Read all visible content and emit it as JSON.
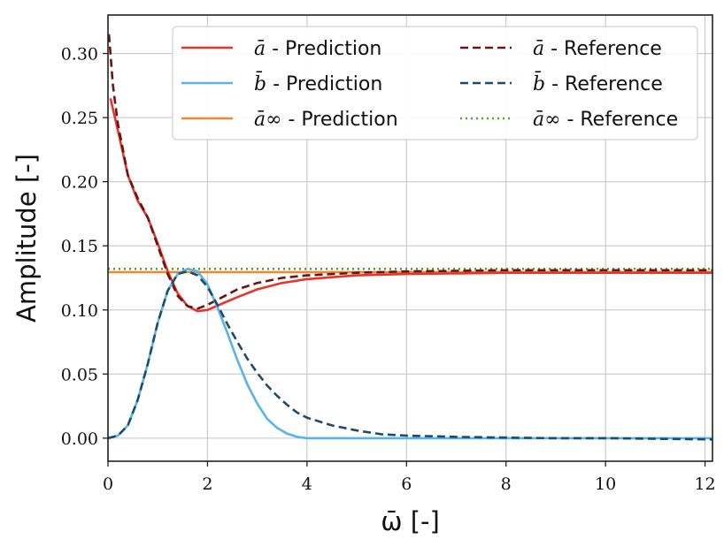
{
  "chart_data": {
    "type": "line",
    "title": "",
    "xlabel": "ω̄ [-]",
    "ylabel": "Amplitude [-]",
    "xlim": [
      0,
      12.15
    ],
    "ylim": [
      -0.018,
      0.33
    ],
    "xticks": [
      0,
      2,
      4,
      6,
      8,
      10,
      12
    ],
    "xtick_labels": [
      "0",
      "2",
      "4",
      "6",
      "8",
      "10",
      "12"
    ],
    "yticks": [
      0.0,
      0.05,
      0.1,
      0.15,
      0.2,
      0.25,
      0.3
    ],
    "ytick_labels": [
      "0.00",
      "0.05",
      "0.10",
      "0.15",
      "0.20",
      "0.25",
      "0.30"
    ],
    "grid": true,
    "legend_position": "top-right",
    "series": [
      {
        "name": "ā - Prediction",
        "symbol": "ā",
        "suffix": " - Prediction",
        "color": "#e8352b",
        "style": "solid",
        "x": [
          0.05,
          0.2,
          0.4,
          0.6,
          0.8,
          1.0,
          1.2,
          1.4,
          1.6,
          1.8,
          2.0,
          2.3,
          2.6,
          3.0,
          3.5,
          4.0,
          5.0,
          6.0,
          7.0,
          8.0,
          10.0,
          12.15
        ],
        "y": [
          0.265,
          0.24,
          0.205,
          0.185,
          0.172,
          0.152,
          0.13,
          0.113,
          0.103,
          0.099,
          0.1,
          0.105,
          0.11,
          0.116,
          0.121,
          0.124,
          0.127,
          0.128,
          0.1285,
          0.129,
          0.129,
          0.129
        ]
      },
      {
        "name": "b̄ - Prediction",
        "symbol": "b̄",
        "suffix": " - Prediction",
        "color": "#56b4ea",
        "style": "solid",
        "x": [
          0.0,
          0.2,
          0.4,
          0.6,
          0.8,
          1.0,
          1.2,
          1.4,
          1.6,
          1.8,
          2.0,
          2.2,
          2.4,
          2.6,
          2.8,
          3.0,
          3.2,
          3.4,
          3.6,
          3.8,
          4.0,
          4.5,
          5.0,
          6.0,
          8.0,
          10.0,
          12.15
        ],
        "y": [
          0.0,
          0.002,
          0.01,
          0.03,
          0.058,
          0.09,
          0.115,
          0.128,
          0.132,
          0.13,
          0.12,
          0.102,
          0.082,
          0.061,
          0.042,
          0.027,
          0.015,
          0.008,
          0.0035,
          0.001,
          0.0,
          0.0,
          0.0,
          0.0,
          0.0,
          0.0,
          0.0
        ]
      },
      {
        "name": "ā∞ - Prediction",
        "symbol": "ā∞",
        "suffix": " - Prediction",
        "color": "#f5852e",
        "style": "solid",
        "x": [
          0.0,
          12.15
        ],
        "y": [
          0.1295,
          0.1295
        ]
      },
      {
        "name": "ā - Reference",
        "symbol": "ā",
        "suffix": " - Reference",
        "color": "#6b1414",
        "style": "dashed",
        "x": [
          0.02,
          0.05,
          0.1,
          0.15,
          0.2,
          0.3,
          0.4,
          0.6,
          0.8,
          1.0,
          1.2,
          1.4,
          1.6,
          1.8,
          2.0,
          2.3,
          2.6,
          3.0,
          3.5,
          4.0,
          5.0,
          6.0,
          7.0,
          8.0,
          10.0,
          12.15
        ],
        "y": [
          0.315,
          0.3,
          0.275,
          0.26,
          0.245,
          0.225,
          0.205,
          0.187,
          0.172,
          0.15,
          0.128,
          0.111,
          0.103,
          0.101,
          0.104,
          0.11,
          0.116,
          0.121,
          0.125,
          0.127,
          0.129,
          0.13,
          0.1305,
          0.131,
          0.131,
          0.131
        ]
      },
      {
        "name": "b̄ - Reference",
        "symbol": "b̄",
        "suffix": " - Reference",
        "color": "#1f4a6b",
        "style": "dashed",
        "x": [
          0.0,
          0.2,
          0.4,
          0.6,
          0.8,
          1.0,
          1.2,
          1.4,
          1.6,
          1.8,
          2.0,
          2.2,
          2.4,
          2.6,
          2.8,
          3.0,
          3.2,
          3.4,
          3.6,
          3.8,
          4.0,
          4.5,
          5.0,
          5.5,
          6.0,
          7.0,
          8.0,
          9.0,
          10.0,
          11.0,
          12.15
        ],
        "y": [
          0.0,
          0.002,
          0.01,
          0.03,
          0.058,
          0.09,
          0.115,
          0.128,
          0.13,
          0.127,
          0.118,
          0.104,
          0.089,
          0.075,
          0.062,
          0.051,
          0.041,
          0.033,
          0.026,
          0.02,
          0.016,
          0.01,
          0.006,
          0.003,
          0.002,
          0.001,
          0.0005,
          0.0,
          0.0,
          -0.0005,
          -0.001
        ]
      },
      {
        "name": "ā∞ - Reference",
        "symbol": "ā∞",
        "suffix": " - Reference",
        "color": "#4aa833",
        "style": "dotted",
        "x": [
          0.0,
          12.15
        ],
        "y": [
          0.132,
          0.132
        ]
      }
    ]
  }
}
